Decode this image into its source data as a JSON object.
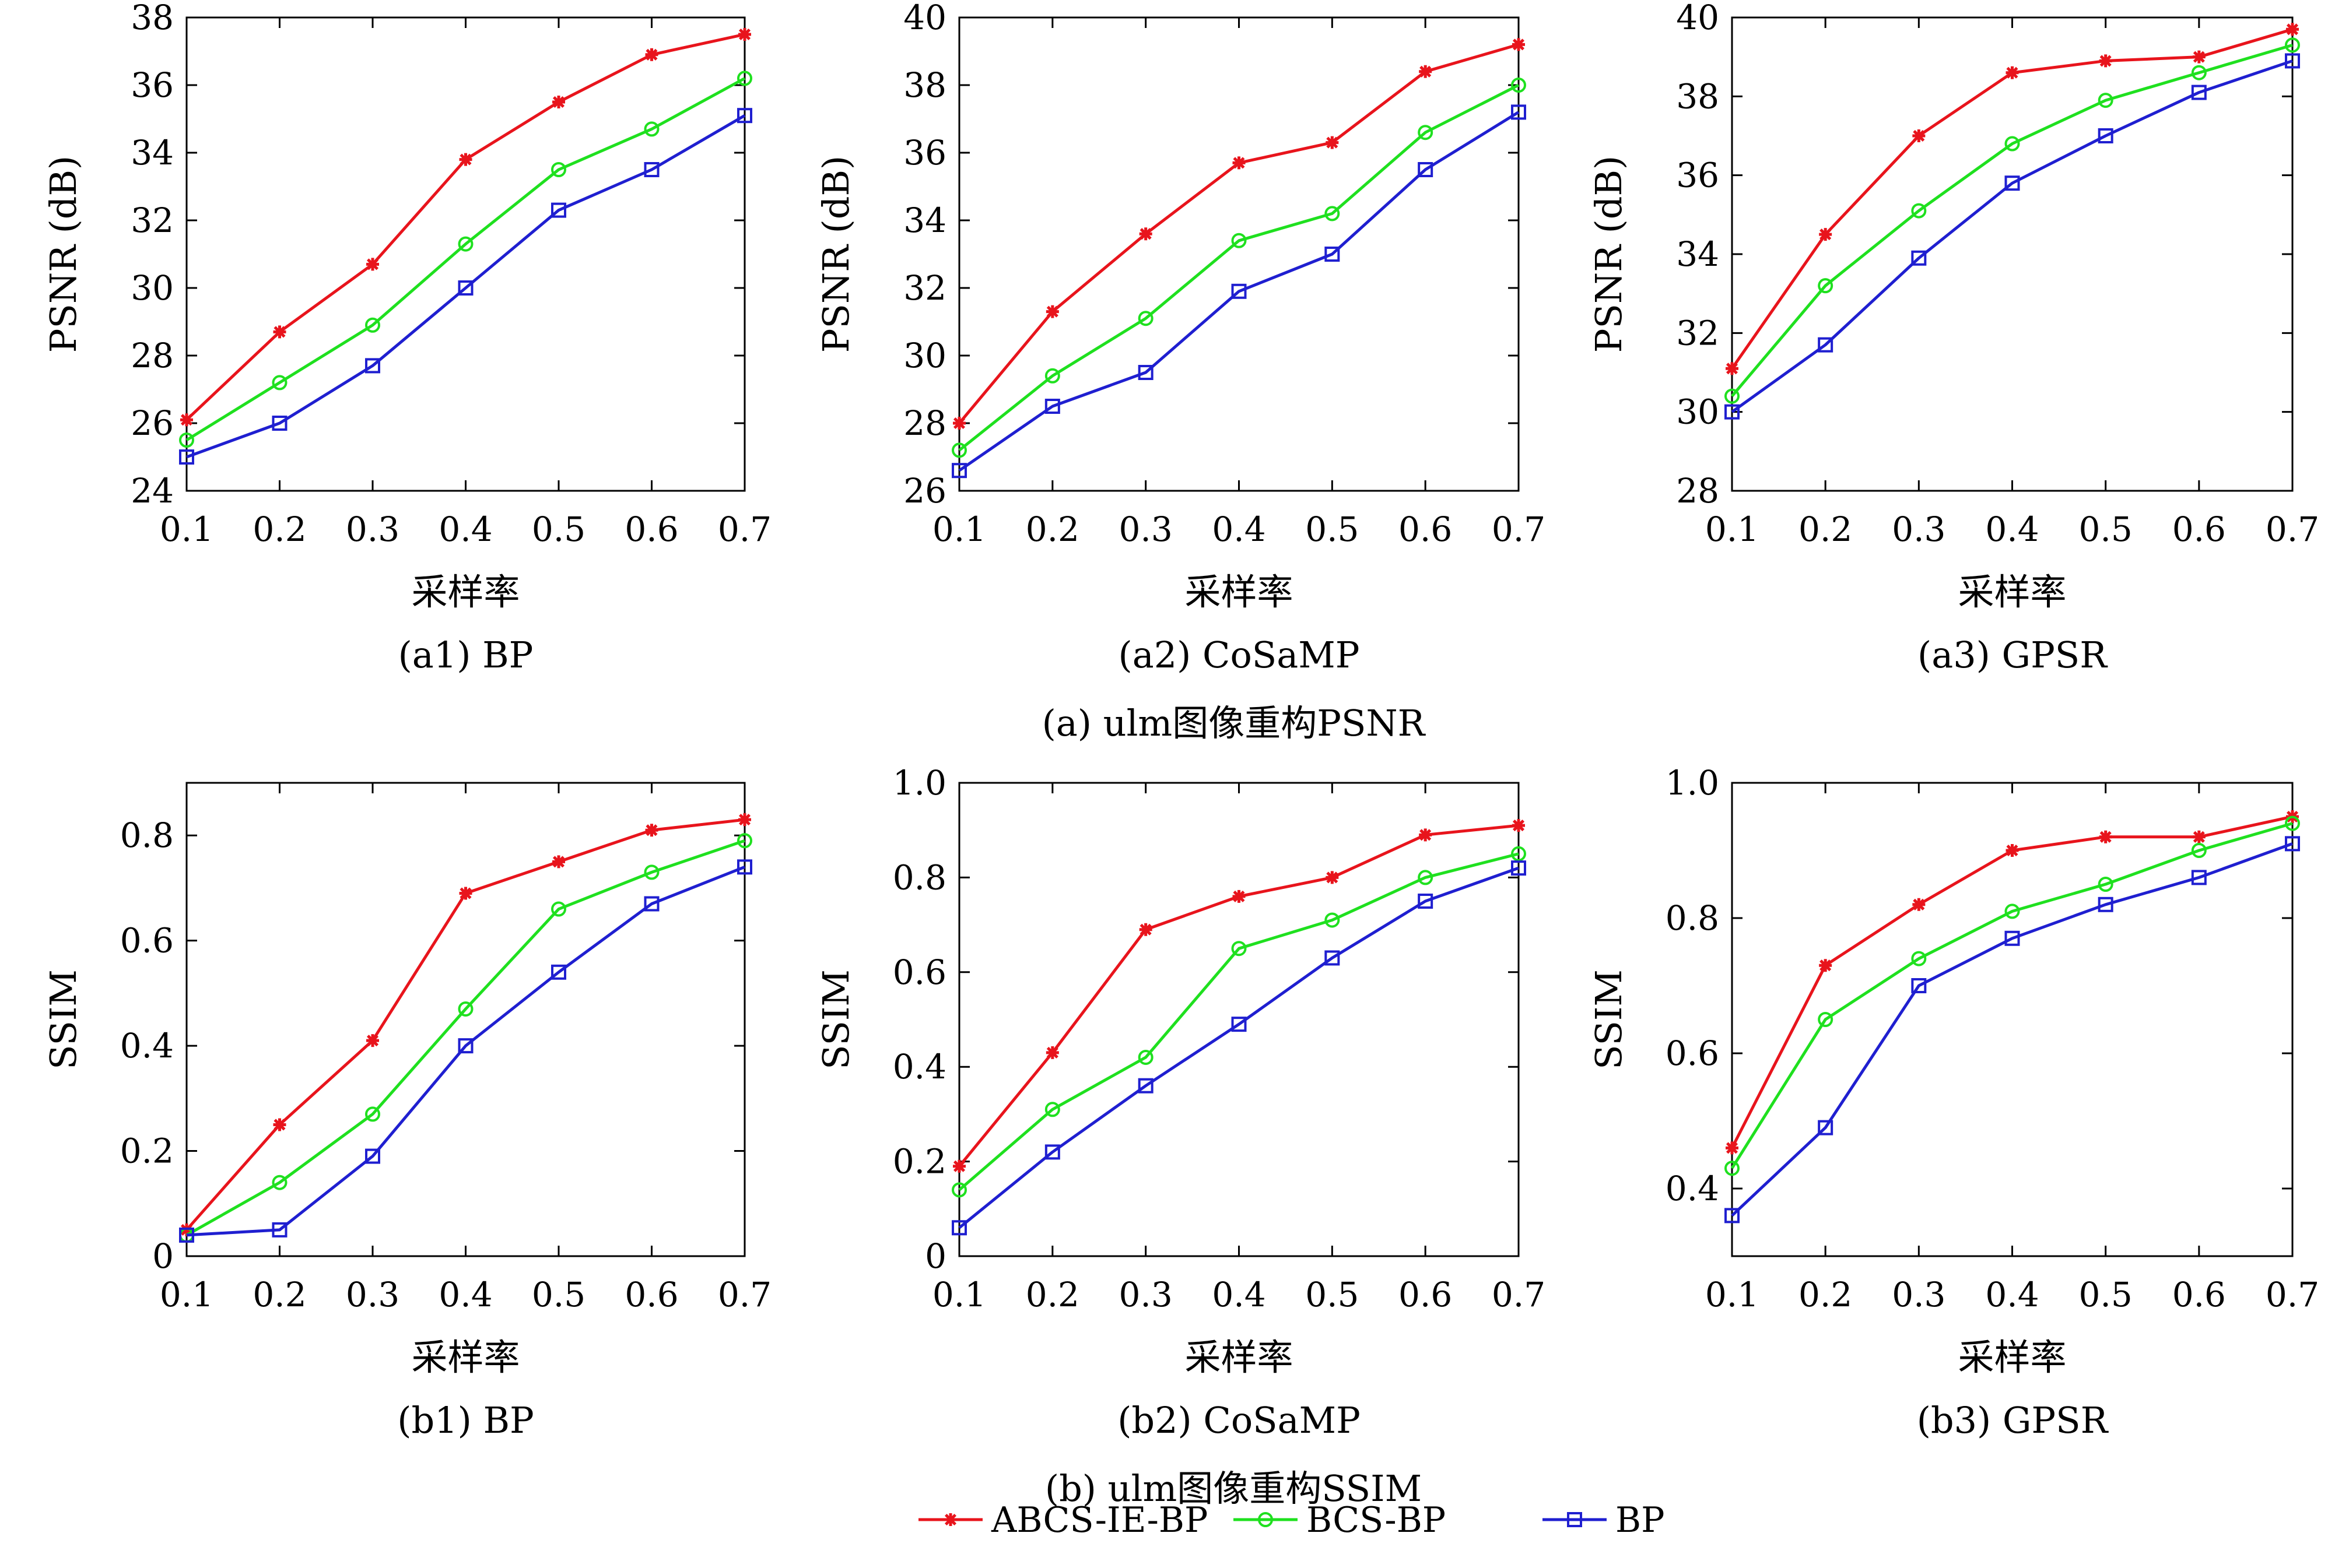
{
  "colors": {
    "ABCS-IE-BP": "#e8141c",
    "BCS-BP": "#1fe01f",
    "BP": "#1f1fd0"
  },
  "legend": {
    "items": [
      {
        "name": "ABCS-IE-BP",
        "marker": "star"
      },
      {
        "name": "BCS-BP",
        "marker": "circle"
      },
      {
        "name": "BP",
        "marker": "square"
      }
    ]
  },
  "group_captions": [
    "(a) ulm图像重构PSNR",
    "(b) ulm图像重构SSIM"
  ],
  "chart_data": [
    {
      "type": "line",
      "caption": "(a1) BP",
      "xlabel": "采样率",
      "ylabel": "PSNR (dB)",
      "x": [
        0.1,
        0.2,
        0.3,
        0.4,
        0.5,
        0.6,
        0.7
      ],
      "xticks": [
        "0.1",
        "0.2",
        "0.3",
        "0.4",
        "0.5",
        "0.6",
        "0.7"
      ],
      "ylim": [
        24,
        38
      ],
      "yticks": [
        "24",
        "26",
        "28",
        "30",
        "32",
        "34",
        "36",
        "38"
      ],
      "series": [
        {
          "name": "ABCS-IE-BP",
          "values": [
            26.1,
            28.7,
            30.7,
            33.8,
            35.5,
            36.9,
            37.5
          ]
        },
        {
          "name": "BCS-BP",
          "values": [
            25.5,
            27.2,
            28.9,
            31.3,
            33.5,
            34.7,
            36.2
          ]
        },
        {
          "name": "BP",
          "values": [
            25.0,
            26.0,
            27.7,
            30.0,
            32.3,
            33.5,
            35.1
          ]
        }
      ]
    },
    {
      "type": "line",
      "caption": "(a2) CoSaMP",
      "xlabel": "采样率",
      "ylabel": "PSNR (dB)",
      "x": [
        0.1,
        0.2,
        0.3,
        0.4,
        0.5,
        0.6,
        0.7
      ],
      "xticks": [
        "0.1",
        "0.2",
        "0.3",
        "0.4",
        "0.5",
        "0.6",
        "0.7"
      ],
      "ylim": [
        26,
        40
      ],
      "yticks": [
        "26",
        "28",
        "30",
        "32",
        "34",
        "36",
        "38",
        "40"
      ],
      "series": [
        {
          "name": "ABCS-IE-BP",
          "values": [
            28.0,
            31.3,
            33.6,
            35.7,
            36.3,
            38.4,
            39.2
          ]
        },
        {
          "name": "BCS-BP",
          "values": [
            27.2,
            29.4,
            31.1,
            33.4,
            34.2,
            36.6,
            38.0
          ]
        },
        {
          "name": "BP",
          "values": [
            26.6,
            28.5,
            29.5,
            31.9,
            33.0,
            35.5,
            37.2
          ]
        }
      ]
    },
    {
      "type": "line",
      "caption": "(a3) GPSR",
      "xlabel": "采样率",
      "ylabel": "PSNR (dB)",
      "x": [
        0.1,
        0.2,
        0.3,
        0.4,
        0.5,
        0.6,
        0.7
      ],
      "xticks": [
        "0.1",
        "0.2",
        "0.3",
        "0.4",
        "0.5",
        "0.6",
        "0.7"
      ],
      "ylim": [
        28,
        40
      ],
      "yticks": [
        "28",
        "30",
        "32",
        "34",
        "36",
        "38",
        "40"
      ],
      "series": [
        {
          "name": "ABCS-IE-BP",
          "values": [
            31.1,
            34.5,
            37.0,
            38.6,
            38.9,
            39.0,
            39.7
          ]
        },
        {
          "name": "BCS-BP",
          "values": [
            30.4,
            33.2,
            35.1,
            36.8,
            37.9,
            38.6,
            39.3
          ]
        },
        {
          "name": "BP",
          "values": [
            30.0,
            31.7,
            33.9,
            35.8,
            37.0,
            38.1,
            38.9
          ]
        }
      ]
    },
    {
      "type": "line",
      "caption": "(b1) BP",
      "xlabel": "采样率",
      "ylabel": "SSIM",
      "x": [
        0.1,
        0.2,
        0.3,
        0.4,
        0.5,
        0.6,
        0.7
      ],
      "xticks": [
        "0.1",
        "0.2",
        "0.3",
        "0.4",
        "0.5",
        "0.6",
        "0.7"
      ],
      "ylim": [
        0,
        0.9
      ],
      "yticks": [
        "0",
        "0.2",
        "0.4",
        "0.6",
        "0.8"
      ],
      "series": [
        {
          "name": "ABCS-IE-BP",
          "values": [
            0.05,
            0.25,
            0.41,
            0.69,
            0.75,
            0.81,
            0.83
          ]
        },
        {
          "name": "BCS-BP",
          "values": [
            0.04,
            0.14,
            0.27,
            0.47,
            0.66,
            0.73,
            0.79
          ]
        },
        {
          "name": "BP",
          "values": [
            0.04,
            0.05,
            0.19,
            0.4,
            0.54,
            0.67,
            0.74
          ]
        }
      ]
    },
    {
      "type": "line",
      "caption": "(b2) CoSaMP",
      "xlabel": "采样率",
      "ylabel": "SSIM",
      "x": [
        0.1,
        0.2,
        0.3,
        0.4,
        0.5,
        0.6,
        0.7
      ],
      "xticks": [
        "0.1",
        "0.2",
        "0.3",
        "0.4",
        "0.5",
        "0.6",
        "0.7"
      ],
      "ylim": [
        0,
        1.0
      ],
      "yticks": [
        "0",
        "0.2",
        "0.4",
        "0.6",
        "0.8",
        "1.0"
      ],
      "series": [
        {
          "name": "ABCS-IE-BP",
          "values": [
            0.19,
            0.43,
            0.69,
            0.76,
            0.8,
            0.89,
            0.91
          ]
        },
        {
          "name": "BCS-BP",
          "values": [
            0.14,
            0.31,
            0.42,
            0.65,
            0.71,
            0.8,
            0.85
          ]
        },
        {
          "name": "BP",
          "values": [
            0.06,
            0.22,
            0.36,
            0.49,
            0.63,
            0.75,
            0.82
          ]
        }
      ]
    },
    {
      "type": "line",
      "caption": "(b3) GPSR",
      "xlabel": "采样率",
      "ylabel": "SSIM",
      "x": [
        0.1,
        0.2,
        0.3,
        0.4,
        0.5,
        0.6,
        0.7
      ],
      "xticks": [
        "0.1",
        "0.2",
        "0.3",
        "0.4",
        "0.5",
        "0.6",
        "0.7"
      ],
      "ylim": [
        0.3,
        1.0
      ],
      "yticks": [
        "0.4",
        "0.6",
        "0.8",
        "1.0"
      ],
      "series": [
        {
          "name": "ABCS-IE-BP",
          "values": [
            0.46,
            0.73,
            0.82,
            0.9,
            0.92,
            0.92,
            0.95
          ]
        },
        {
          "name": "BCS-BP",
          "values": [
            0.43,
            0.65,
            0.74,
            0.81,
            0.85,
            0.9,
            0.94
          ]
        },
        {
          "name": "BP",
          "values": [
            0.36,
            0.49,
            0.7,
            0.77,
            0.82,
            0.86,
            0.91
          ]
        }
      ]
    }
  ]
}
